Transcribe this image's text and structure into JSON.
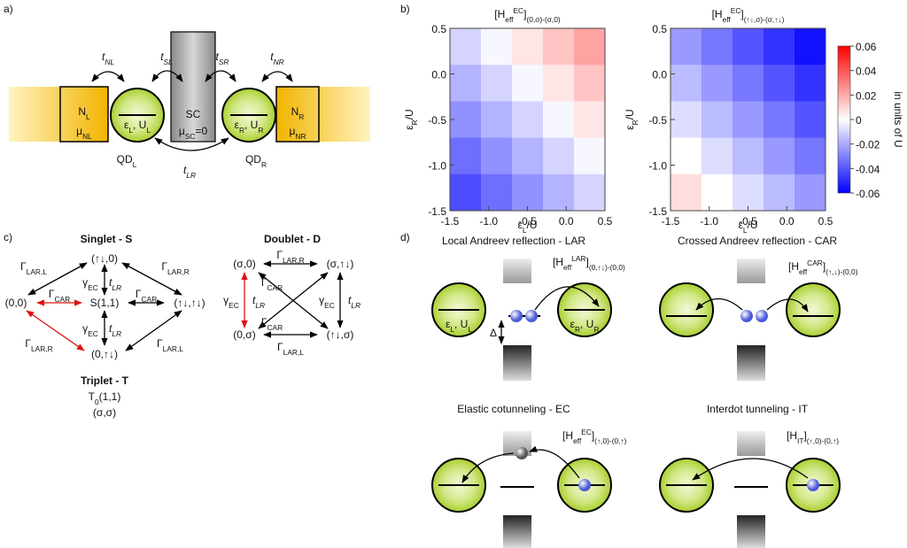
{
  "panel_labels": [
    "a)",
    "b)",
    "c)",
    "d)"
  ],
  "a": {
    "t_NL": [
      "t",
      "NL"
    ],
    "t_SL": [
      "t",
      "SL"
    ],
    "t_SR": [
      "t",
      "SR"
    ],
    "t_NR": [
      "t",
      "NR"
    ],
    "t_LR": [
      "t",
      "LR"
    ],
    "N_L": [
      "N",
      "L"
    ],
    "mu_NL": [
      "μ",
      "NL"
    ],
    "N_R": [
      "N",
      "R"
    ],
    "mu_NR": [
      "μ",
      "NR"
    ],
    "SC": "SC",
    "mu_SC": [
      "μ",
      "SC",
      "=0"
    ],
    "dot_L": [
      "ε",
      "L",
      ", U",
      "L"
    ],
    "dot_R": [
      "ε",
      "R",
      ", U",
      "R"
    ],
    "QD_L": [
      "QD",
      "L"
    ],
    "QD_R": [
      "QD",
      "R"
    ]
  },
  "chart_data": [
    {
      "type": "heatmap",
      "title": [
        "[H",
        "eff",
        "EC",
        "]",
        "(0,σ)-(σ,0)"
      ],
      "xlabel": [
        "ε",
        "L",
        "/U"
      ],
      "ylabel": [
        "ε",
        "R",
        "/U"
      ],
      "xlim": [
        -1.5,
        0.5
      ],
      "ylim": [
        -1.5,
        0.5
      ],
      "xticks": [
        -1.5,
        {
          "value": -1,
          "label": "-1.0"
        },
        -0.5,
        {
          "value": 0,
          "label": "0.0"
        },
        0.5
      ],
      "yticks": [
        0.5,
        {
          "value": 0,
          "label": "0.0"
        },
        -0.5,
        {
          "value": -1,
          "label": "-1.0"
        },
        -1.5
      ],
      "x": [
        -1.3,
        -0.9,
        -0.5,
        -0.1,
        0.3
      ],
      "y": [
        0.3,
        -0.1,
        -0.5,
        -0.9,
        -1.3
      ],
      "z": [
        [
          -0.01,
          -0.002,
          0.006,
          0.014,
          0.022
        ],
        [
          -0.018,
          -0.01,
          -0.002,
          0.006,
          0.014
        ],
        [
          -0.026,
          -0.018,
          -0.01,
          -0.002,
          0.006
        ],
        [
          -0.034,
          -0.026,
          -0.018,
          -0.01,
          -0.002
        ],
        [
          -0.042,
          -0.034,
          -0.026,
          -0.018,
          -0.01
        ]
      ],
      "zlim": [
        -0.06,
        0.06
      ],
      "colorscale": [
        "#0000ff",
        "#ffffff",
        "#ff0000"
      ]
    },
    {
      "type": "heatmap",
      "title": [
        "[H",
        "eff",
        "EC",
        "]",
        "(↑↓,σ)-(σ,↑↓)"
      ],
      "xlabel": [
        "ε",
        "L",
        "/U"
      ],
      "ylabel": [
        "ε",
        "R",
        "/U"
      ],
      "xlim": [
        -1.5,
        0.5
      ],
      "ylim": [
        -1.5,
        0.5
      ],
      "xticks": [
        -1.5,
        {
          "value": -1,
          "label": "-1.0"
        },
        -0.5,
        {
          "value": 0,
          "label": "0.0"
        },
        0.5
      ],
      "yticks": [
        0.5,
        {
          "value": 0,
          "label": "0.0"
        },
        -0.5,
        {
          "value": -1,
          "label": "-1.0"
        },
        -1.5
      ],
      "x": [
        -1.3,
        -0.9,
        -0.5,
        -0.1,
        0.3
      ],
      "y": [
        0.3,
        -0.1,
        -0.5,
        -0.9,
        -1.3
      ],
      "z": [
        [
          -0.024,
          -0.032,
          -0.04,
          -0.048,
          -0.056
        ],
        [
          -0.016,
          -0.024,
          -0.032,
          -0.04,
          -0.048
        ],
        [
          -0.008,
          -0.016,
          -0.024,
          -0.032,
          -0.04
        ],
        [
          0,
          -0.008,
          -0.016,
          -0.024,
          -0.032
        ],
        [
          0.008,
          0,
          -0.008,
          -0.016,
          -0.024
        ]
      ],
      "zlim": [
        -0.06,
        0.06
      ],
      "colorscale": [
        "#0000ff",
        "#ffffff",
        "#ff0000"
      ],
      "zticks": [
        0.06,
        0.04,
        0.02,
        0,
        -0.02,
        -0.04,
        -0.06
      ],
      "zlabel": "in units of U"
    }
  ],
  "c": {
    "singlet": {
      "title": "Singlet - S",
      "states": [
        "(↑↓,0)",
        "(0,0)",
        "S(1,1)",
        "(↑↓,↑↓)",
        "(0,↑↓)"
      ],
      "G_LAR_L": [
        "Γ",
        "LAR,L"
      ],
      "G_LAR_R": [
        "Γ",
        "LAR,R"
      ],
      "g_EC_top": [
        "γ",
        "EC"
      ],
      "t_LR_top": [
        "t",
        "LR"
      ],
      "G_CAR_red": [
        "Γ",
        "CAR"
      ],
      "G_CAR": [
        "Γ",
        "CAR"
      ],
      "g_EC_bottom": [
        "γ",
        "EC"
      ],
      "t_LR_bottom": [
        "t",
        "LR"
      ],
      "G_LAR_R_bottom": [
        "Γ",
        "LAR,R"
      ],
      "G_LAR_L_bottom": [
        "Γ",
        "LAR,L"
      ]
    },
    "doublet": {
      "title": "Doublet - D",
      "states": [
        "(σ,0)",
        "(σ,↑↓)",
        "(0,σ)",
        "(↑↓,σ)"
      ],
      "G_LAR_R": [
        "Γ",
        "LAR,R"
      ],
      "g_EC_left": [
        "γ",
        "EC"
      ],
      "t_LR_left": [
        "t",
        "LR"
      ],
      "G_CAR_top": [
        "Γ",
        "CAR"
      ],
      "G_CAR_bottom": [
        "Γ",
        "CAR"
      ],
      "g_EC_right": [
        "γ",
        "EC"
      ],
      "t_LR_right": [
        "t",
        "LR"
      ],
      "G_LAR_L": [
        "Γ",
        "LAR,L"
      ]
    },
    "triplet": {
      "title": "Triplet - T",
      "state": [
        "T",
        "0",
        "(1,1)"
      ],
      "state2": "(σ,σ)"
    }
  },
  "d": {
    "LAR": {
      "title": "Local Andreev reflection - LAR",
      "term": [
        "[H",
        "eff",
        "LAR",
        "]",
        "(0,↑↓)-(0,0)"
      ],
      "dot_L": [
        "ε",
        "L",
        ", U",
        "L"
      ],
      "dot_R": [
        "ε",
        "R",
        ", U",
        "R"
      ],
      "gap": "Δ"
    },
    "CAR": {
      "title": "Crossed Andreev reflection - CAR",
      "term": [
        "[H",
        "eff",
        "CAR",
        "]",
        "(↑,↓)-(0,0)"
      ]
    },
    "EC": {
      "title": "Elastic cotunneling - EC",
      "term": [
        "[H",
        "eff",
        "EC",
        "]",
        "(↑,0)-(0,↑)"
      ]
    },
    "IT": {
      "title": "Interdot tunneling - IT",
      "term": [
        "[H",
        "IT",
        "]",
        "(↑,0)-(0,↑)"
      ]
    }
  }
}
